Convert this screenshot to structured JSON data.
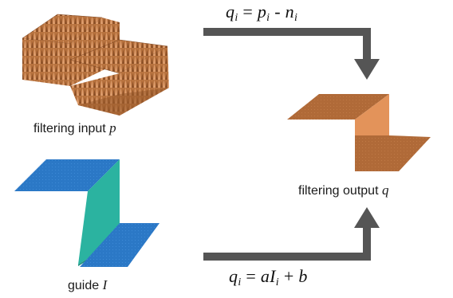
{
  "labels": {
    "input_text": "filtering input",
    "input_symbol": "p",
    "guide_text": "guide",
    "guide_symbol": "I",
    "output_text": "filtering output",
    "output_symbol": "q"
  },
  "equations": {
    "top": {
      "lhs": "q",
      "lhs_sub": "i",
      "eq": "=",
      "t1": "p",
      "t1_sub": "i",
      "op": "-",
      "t2": "n",
      "t2_sub": "i"
    },
    "bottom": {
      "lhs": "q",
      "lhs_sub": "i",
      "eq": "=",
      "t1": "aI",
      "t1_sub": "i",
      "op": "+",
      "t2": "b"
    }
  },
  "colors": {
    "noisy_surface": "#b8733f",
    "noisy_surface_light": "#e0a070",
    "guide_plate": "#2b78c6",
    "guide_wall": "#2bb3a0",
    "output_plate": "#b06a38",
    "output_wall": "#e3935a",
    "arrow": "#555555"
  }
}
